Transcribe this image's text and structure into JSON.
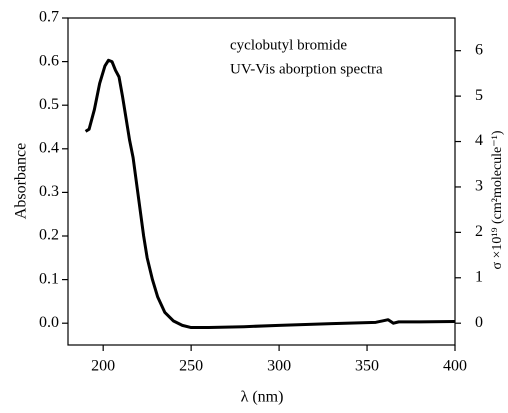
{
  "chart_data": {
    "type": "line",
    "x_label": "λ (nm)",
    "y_label": "Absorbance",
    "y2_label": "σ ×10¹⁹ (cm²molecule⁻¹)",
    "annotations": [
      "cyclobutyl bromide",
      "UV-Vis aborption spectra"
    ],
    "xlim": [
      180,
      400
    ],
    "xticks": [
      200,
      250,
      300,
      350,
      400
    ],
    "ylim": [
      -0.05,
      0.7
    ],
    "yticks": [
      {
        "value": 0,
        "label": "0.0"
      },
      {
        "value": 0.1,
        "label": "0.1"
      },
      {
        "value": 0.2,
        "label": "0.2"
      },
      {
        "value": 0.3,
        "label": "0.3"
      },
      {
        "value": 0.4,
        "label": "0.4"
      },
      {
        "value": 0.5,
        "label": "0.5"
      },
      {
        "value": 0.6,
        "label": "0.6"
      },
      {
        "value": 0.7,
        "label": "0.7"
      }
    ],
    "y2lim": [
      -0.48,
      6.72
    ],
    "y2ticks": [
      0,
      1,
      2,
      3,
      4,
      5,
      6
    ],
    "x": [
      190,
      192,
      195,
      198,
      201,
      203,
      205,
      207,
      209,
      211,
      213,
      215,
      217,
      219,
      221,
      223,
      225,
      228,
      231,
      235,
      240,
      245,
      250,
      260,
      280,
      300,
      330,
      355,
      362,
      365,
      368,
      380,
      400
    ],
    "series": [
      {
        "color": "#000000",
        "values": [
          0.44,
          0.445,
          0.49,
          0.55,
          0.59,
          0.603,
          0.6,
          0.58,
          0.565,
          0.52,
          0.47,
          0.42,
          0.38,
          0.32,
          0.26,
          0.2,
          0.15,
          0.1,
          0.06,
          0.025,
          0.005,
          -0.005,
          -0.01,
          -0.01,
          -0.008,
          -0.005,
          -0.001,
          0.002,
          0.008,
          0.0,
          0.003,
          0.003,
          0.004
        ]
      }
    ]
  }
}
